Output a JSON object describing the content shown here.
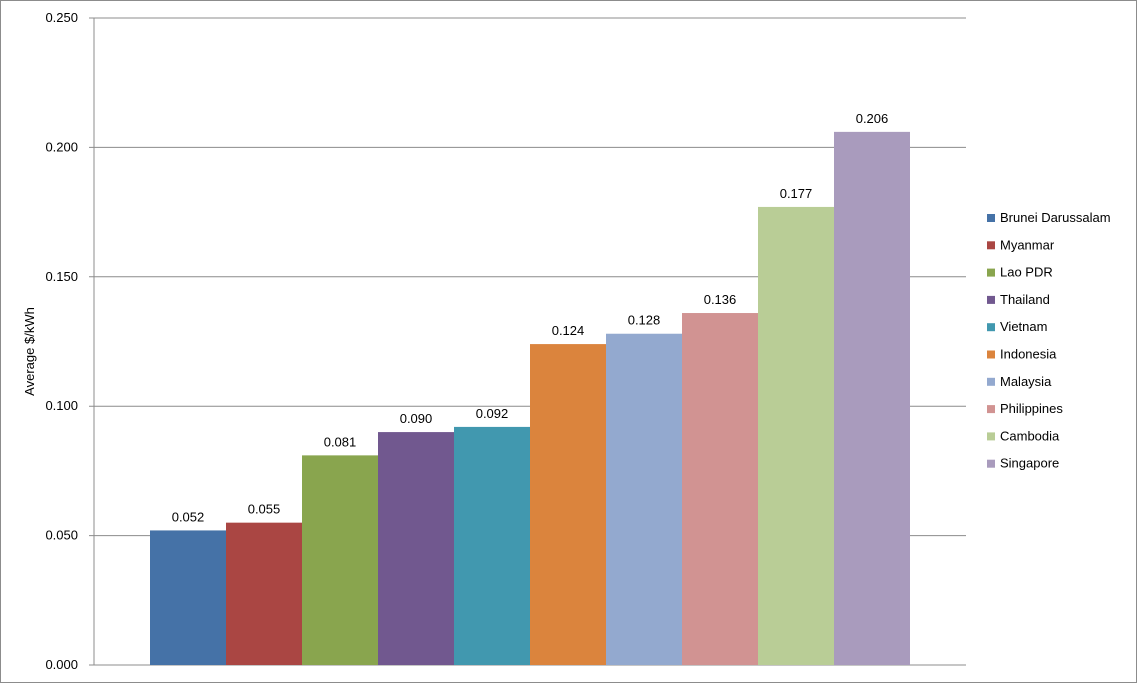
{
  "chart_data": {
    "type": "bar",
    "title": "",
    "xlabel": "",
    "ylabel": "Average $/kWh",
    "ylim": [
      0,
      0.25
    ],
    "yticks": [
      "0.000",
      "0.050",
      "0.100",
      "0.150",
      "0.200",
      "0.250"
    ],
    "grid": true,
    "legend_position": "right",
    "series": [
      {
        "name": "Brunei Darussalam",
        "value": 0.052,
        "label": "0.052",
        "color": "#4572A7"
      },
      {
        "name": "Myanmar",
        "value": 0.055,
        "label": "0.055",
        "color": "#AA4643"
      },
      {
        "name": "Lao PDR",
        "value": 0.081,
        "label": "0.081",
        "color": "#89A54E"
      },
      {
        "name": "Thailand",
        "value": 0.09,
        "label": "0.090",
        "color": "#71588F"
      },
      {
        "name": "Vietnam",
        "value": 0.092,
        "label": "0.092",
        "color": "#4198AF"
      },
      {
        "name": "Indonesia",
        "value": 0.124,
        "label": "0.124",
        "color": "#DB843D"
      },
      {
        "name": "Malaysia",
        "value": 0.128,
        "label": "0.128",
        "color": "#93A9CF"
      },
      {
        "name": "Philippines",
        "value": 0.136,
        "label": "0.136",
        "color": "#D19392"
      },
      {
        "name": "Cambodia",
        "value": 0.177,
        "label": "0.177",
        "color": "#B9CD96"
      },
      {
        "name": "Singapore",
        "value": 0.206,
        "label": "0.206",
        "color": "#A99BBD"
      }
    ]
  }
}
